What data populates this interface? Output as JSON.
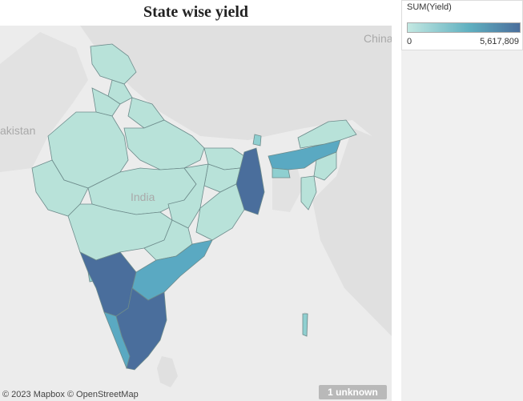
{
  "title": "State wise yield",
  "map": {
    "country_labels": {
      "india": "India",
      "pakistan": "akistan",
      "china": "China"
    },
    "attribution": "© 2023 Mapbox © OpenStreetMap",
    "unknown_badge": "1 unknown"
  },
  "legend": {
    "title": "SUM(Yield)",
    "min_label": "0",
    "max_label": "5,617,809",
    "colors": {
      "low": "#c3e8e2",
      "mid": "#5fb0c0",
      "high": "#4a6e9c"
    }
  },
  "colors": {
    "low": "#b8e2d9",
    "mid_low": "#8fcfd0",
    "mid": "#5aa9c2",
    "high": "#4a6e9c",
    "state_border": "#6d8b8b",
    "land_outside": "#e4e4e4",
    "sea": "#ececec"
  }
}
